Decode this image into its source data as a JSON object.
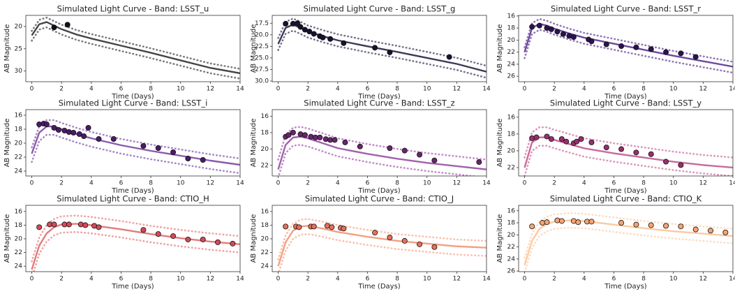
{
  "chart_data": [
    {
      "type": "line",
      "title": "Simulated Light Curve - Band: LSST_u",
      "xlabel": "Time (Days)",
      "ylabel": "AB Magnitude",
      "xlim": [
        -0.4,
        14
      ],
      "xticks": [
        0,
        2,
        4,
        6,
        8,
        10,
        12,
        14
      ],
      "ylim": [
        32.4,
        17.5
      ],
      "yticks": [
        20,
        25,
        30
      ],
      "x": [
        0,
        0.5,
        1,
        1.5,
        2,
        3,
        4,
        6,
        8,
        10,
        12,
        14
      ],
      "series": [
        {
          "color": "#454545",
          "dash": false,
          "values": [
            22,
            19.5,
            19,
            19.8,
            20.6,
            21.8,
            22.7,
            24.3,
            25.9,
            27.6,
            29.3,
            30.5
          ]
        },
        {
          "color": "#7a7a7a",
          "dash": true,
          "values": [
            21,
            18.5,
            18,
            18.8,
            19.6,
            20.8,
            21.7,
            23.3,
            24.9,
            26.6,
            28.3,
            29.5
          ]
        },
        {
          "color": "#7a7a7a",
          "dash": true,
          "values": [
            23.2,
            20.7,
            20.2,
            21,
            21.8,
            23,
            23.9,
            25.5,
            27.1,
            28.8,
            30.5,
            31.7
          ]
        }
      ],
      "points": {
        "color": "#120d1e",
        "x": [
          1.5,
          2.4
        ],
        "values": [
          20.2,
          19.6
        ]
      }
    },
    {
      "type": "line",
      "title": "Simulated Light Curve - Band: LSST_g",
      "xlabel": "Time (Days)",
      "ylabel": "AB Magnitude",
      "xlim": [
        -0.4,
        14
      ],
      "xticks": [
        0,
        2,
        4,
        6,
        8,
        10,
        12,
        14
      ],
      "ylim": [
        30.15,
        15.8
      ],
      "yticks": [
        17.5,
        {
          "value": 20,
          "label": "20.0"
        },
        22.5,
        {
          "value": 25,
          "label": "25.0"
        },
        27.5,
        {
          "value": 30,
          "label": "30.0"
        }
      ],
      "x": [
        0,
        0.5,
        1,
        1.5,
        2,
        3,
        4,
        6,
        8,
        10,
        12,
        14
      ],
      "series": [
        {
          "color": "#3b3a57",
          "dash": false,
          "values": [
            22,
            18.5,
            17.8,
            18.5,
            19.3,
            20.3,
            21.2,
            22.5,
            23.7,
            25,
            26.3,
            28
          ]
        },
        {
          "color": "#75748c",
          "dash": true,
          "values": [
            20.7,
            17.2,
            16.5,
            17.2,
            18,
            19,
            19.9,
            21.2,
            22.4,
            23.7,
            25,
            26.7
          ]
        },
        {
          "color": "#75748c",
          "dash": true,
          "values": [
            23.3,
            19.8,
            19.1,
            19.8,
            20.6,
            21.6,
            22.5,
            23.8,
            25,
            26.3,
            27.6,
            29.3
          ]
        }
      ],
      "points": {
        "color": "#1b1030",
        "x": [
          0.5,
          1,
          1.3,
          1.5,
          1.8,
          2.1,
          2.4,
          2.8,
          3,
          3.5,
          4.4,
          6.5,
          7.5,
          11.5
        ],
        "values": [
          17.6,
          17.6,
          17.5,
          18.3,
          18.9,
          19.3,
          19.8,
          20.3,
          20.6,
          20.9,
          21.8,
          22.8,
          23.8,
          24.8
        ]
      }
    },
    {
      "type": "line",
      "title": "Simulated Light Curve - Band: LSST_r",
      "xlabel": "Time (Days)",
      "ylabel": "AB Magnitude",
      "xlim": [
        -0.4,
        14
      ],
      "xticks": [
        0,
        2,
        4,
        6,
        8,
        10,
        12,
        14
      ],
      "ylim": [
        26.9,
        15.9
      ],
      "yticks": [
        16,
        18,
        20,
        22,
        24,
        26
      ],
      "x": [
        0,
        0.5,
        1,
        1.5,
        2,
        3,
        4,
        6,
        8,
        10,
        12,
        14
      ],
      "series": [
        {
          "color": "#6c4a9c",
          "dash": false,
          "values": [
            22,
            18,
            17.3,
            17.6,
            18.1,
            18.9,
            19.6,
            20.6,
            21.6,
            22.6,
            23.5,
            24.4
          ]
        },
        {
          "color": "#8f76b4",
          "dash": true,
          "values": [
            21.2,
            17.2,
            16.5,
            16.8,
            17.3,
            18.1,
            18.8,
            19.8,
            20.8,
            21.8,
            22.7,
            23.6
          ]
        },
        {
          "color": "#8f76b4",
          "dash": true,
          "values": [
            23,
            19,
            18.3,
            18.6,
            19.1,
            19.9,
            20.6,
            21.6,
            22.6,
            23.6,
            24.5,
            25.4
          ]
        }
      ],
      "points": {
        "color": "#2c1250",
        "x": [
          0.5,
          1,
          1.5,
          1.8,
          2.2,
          2.6,
          3,
          3.3,
          4.3,
          4.5,
          5.5,
          6.5,
          7.5,
          8.5,
          9.5,
          10.5,
          11.5
        ],
        "values": [
          17.8,
          17.6,
          18,
          18.2,
          18.6,
          19,
          19.3,
          19.5,
          19.9,
          20.2,
          20.7,
          21,
          21.2,
          21.5,
          22,
          22.2,
          22.8
        ]
      }
    },
    {
      "type": "line",
      "title": "Simulated Light Curve - Band: LSST_i",
      "xlabel": "Time (Days)",
      "ylabel": "AB Magnitude",
      "xlim": [
        -0.4,
        14
      ],
      "xticks": [
        0,
        2,
        4,
        6,
        8,
        10,
        12,
        14
      ],
      "ylim": [
        24.7,
        15.2
      ],
      "yticks": [
        16,
        18,
        20,
        22,
        24
      ],
      "x": [
        0,
        0.5,
        1,
        1.5,
        2,
        3,
        4,
        6,
        8,
        10,
        12,
        14
      ],
      "series": [
        {
          "color": "#8a5aab",
          "dash": false,
          "values": [
            21.5,
            18.5,
            17.6,
            17.6,
            18,
            18.7,
            19.3,
            20.3,
            21.1,
            21.8,
            22.5,
            23.1
          ]
        },
        {
          "color": "#a888c4",
          "dash": true,
          "values": [
            20.6,
            17.6,
            16.7,
            16.7,
            17.1,
            17.8,
            18.4,
            19.4,
            20.2,
            20.9,
            21.6,
            22.2
          ]
        },
        {
          "color": "#a888c4",
          "dash": true,
          "values": [
            22.7,
            19.7,
            18.8,
            18.8,
            19.2,
            19.9,
            20.5,
            21.5,
            22.3,
            23,
            23.7,
            24.3
          ]
        }
      ],
      "points": {
        "color": "#4a1a6a",
        "x": [
          0.5,
          0.8,
          1,
          1.5,
          1.8,
          2.2,
          2.5,
          2.8,
          3.2,
          3.5,
          3.8,
          4.5,
          5.5,
          7.5,
          8.5,
          9.5,
          10.5,
          11.5
        ],
        "values": [
          17.3,
          17.2,
          17.3,
          17.8,
          18.1,
          18.2,
          18.4,
          18.5,
          18.7,
          19,
          17.8,
          19.4,
          19.4,
          20.4,
          20.7,
          21.3,
          22.2,
          22.4
        ]
      }
    },
    {
      "type": "line",
      "title": "Simulated Light Curve - Band: LSST_z",
      "xlabel": "Time (Days)",
      "ylabel": "AB Magnitude",
      "xlim": [
        -0.4,
        14
      ],
      "xticks": [
        0,
        2,
        4,
        6,
        8,
        10,
        12,
        14
      ],
      "ylim": [
        23.3,
        15.2
      ],
      "yticks": [
        16,
        18,
        20,
        22
      ],
      "x": [
        0,
        0.5,
        1,
        1.5,
        2,
        3,
        4,
        6,
        8,
        10,
        12,
        14
      ],
      "series": [
        {
          "color": "#a062ab",
          "dash": false,
          "values": [
            22.5,
            19.5,
            18.6,
            18.5,
            18.7,
            19.3,
            19.9,
            20.6,
            21.2,
            21.7,
            22.1,
            22.5
          ]
        },
        {
          "color": "#c08cc6",
          "dash": true,
          "values": [
            21.3,
            18.3,
            17.4,
            17.3,
            17.5,
            18.1,
            18.7,
            19.4,
            20,
            20.5,
            20.9,
            21.3
          ]
        },
        {
          "color": "#c08cc6",
          "dash": true,
          "values": [
            23.5,
            20.5,
            19.6,
            19.5,
            19.7,
            20.3,
            20.9,
            21.6,
            22.2,
            22.7,
            23.1,
            23.5
          ]
        }
      ],
      "points": {
        "color": "#6a2470",
        "x": [
          0.5,
          0.7,
          1,
          1.5,
          1.8,
          2.2,
          2.5,
          2.8,
          3.2,
          3.5,
          3.8,
          4.5,
          5.5,
          7.5,
          8.5,
          9.5,
          10.5,
          13.5
        ],
        "values": [
          18.5,
          18.3,
          18,
          18.2,
          18.3,
          18.5,
          18.6,
          18.6,
          18.8,
          18.9,
          18.9,
          19.2,
          19.7,
          19.9,
          20.2,
          20.7,
          21.4,
          21.6
        ]
      }
    },
    {
      "type": "line",
      "title": "Simulated Light Curve - Band: LSST_y",
      "xlabel": "Time (Days)",
      "ylabel": "AB Magnitude",
      "xlim": [
        -0.4,
        14
      ],
      "xticks": [
        0,
        2,
        4,
        6,
        8,
        10,
        12,
        14
      ],
      "ylim": [
        23.0,
        15.1
      ],
      "yticks": [
        16,
        18,
        20,
        22
      ],
      "x": [
        0,
        0.5,
        1,
        1.5,
        2,
        3,
        4,
        6,
        8,
        10,
        12,
        14
      ],
      "series": [
        {
          "color": "#c86b9b",
          "dash": false,
          "values": [
            22,
            19,
            18.4,
            18.4,
            18.7,
            19.2,
            19.7,
            20.3,
            20.8,
            21.3,
            21.7,
            22
          ]
        },
        {
          "color": "#dc96bb",
          "dash": true,
          "values": [
            20.8,
            17.8,
            17.2,
            17.2,
            17.5,
            18,
            18.5,
            19.1,
            19.6,
            20.1,
            20.5,
            20.8
          ]
        },
        {
          "color": "#dc96bb",
          "dash": true,
          "values": [
            23,
            20,
            19.4,
            19.4,
            19.7,
            20.2,
            20.7,
            21.3,
            21.8,
            22.3,
            22.7,
            23
          ]
        }
      ],
      "points": {
        "color": "#9a2e6e",
        "x": [
          0.5,
          0.8,
          1.5,
          1.8,
          2.5,
          2.8,
          3.3,
          3.5,
          3.8,
          4.5,
          5.5,
          6.5,
          7.5,
          8.5,
          9.5,
          10.5
        ],
        "values": [
          18.5,
          18.4,
          18.3,
          18.6,
          18.6,
          18.9,
          19.1,
          18.9,
          18.6,
          19,
          19.6,
          19.8,
          20.2,
          20.4,
          21.3,
          21.7
        ]
      }
    },
    {
      "type": "line",
      "title": "Simulated Light Curve - Band: CTIO_H",
      "xlabel": "Time (Days)",
      "ylabel": "AB Magnitude",
      "xlim": [
        -0.4,
        14
      ],
      "xticks": [
        0,
        2,
        4,
        6,
        8,
        10,
        12,
        14
      ],
      "ylim": [
        24.8,
        15.1
      ],
      "yticks": [
        16,
        18,
        20,
        22,
        24
      ],
      "x": [
        0,
        0.5,
        1,
        1.5,
        2,
        3,
        4,
        6,
        8,
        10,
        12,
        14
      ],
      "series": [
        {
          "color": "#e47b7b",
          "dash": false,
          "values": [
            24.5,
            21,
            19.2,
            18.3,
            17.9,
            17.8,
            18,
            18.6,
            19.3,
            19.9,
            20.4,
            20.8
          ]
        },
        {
          "color": "#f0a3a3",
          "dash": true,
          "values": [
            23.3,
            19.8,
            18,
            17.1,
            16.7,
            16.6,
            16.8,
            17.4,
            18.1,
            18.7,
            19.2,
            19.6
          ]
        },
        {
          "color": "#f0a3a3",
          "dash": true,
          "values": [
            25.7,
            22.2,
            20.4,
            19.5,
            19.1,
            19,
            19.2,
            19.8,
            20.5,
            21.1,
            21.6,
            22
          ]
        }
      ],
      "points": {
        "color": "#d54a5a",
        "x": [
          0.5,
          1.2,
          1.5,
          2.2,
          2.5,
          3.3,
          3.6,
          4.2,
          4.5,
          7.5,
          8.5,
          9.5,
          10.5,
          11.5,
          12.5,
          13.5
        ],
        "values": [
          18.3,
          17.9,
          17.9,
          17.9,
          17.9,
          17.9,
          18,
          18.1,
          18.3,
          18.7,
          19.3,
          19.6,
          20.1,
          20.1,
          20.5,
          20.7
        ]
      }
    },
    {
      "type": "line",
      "title": "Simulated Light Curve - Band: CTIO_J",
      "xlabel": "Time (Days)",
      "ylabel": "AB Magnitude",
      "xlim": [
        -0.4,
        14
      ],
      "xticks": [
        0,
        2,
        4,
        6,
        8,
        10,
        12,
        14
      ],
      "ylim": [
        24.8,
        15.1
      ],
      "yticks": [
        16,
        18,
        20,
        22,
        24
      ],
      "x": [
        0,
        0.5,
        1,
        1.5,
        2,
        3,
        4,
        6,
        8,
        10,
        12,
        14
      ],
      "series": [
        {
          "color": "#f2a083",
          "dash": false,
          "values": [
            24,
            20.5,
            18.8,
            18.2,
            18.1,
            18.5,
            19,
            19.7,
            20.3,
            20.7,
            21.1,
            21.3
          ]
        },
        {
          "color": "#f8c0aa",
          "dash": true,
          "values": [
            23,
            19.5,
            17.8,
            17.2,
            17.1,
            17.5,
            18,
            18.7,
            19.3,
            19.7,
            20.1,
            20.3
          ]
        },
        {
          "color": "#f8c0aa",
          "dash": true,
          "values": [
            25.2,
            21.7,
            20,
            19.4,
            19.3,
            19.7,
            20.2,
            20.9,
            21.5,
            21.9,
            22.3,
            22.5
          ]
        }
      ],
      "points": {
        "color": "#e9705a",
        "x": [
          0.5,
          1.2,
          1.4,
          2.2,
          2.4,
          3.3,
          3.6,
          4.2,
          4.4,
          6.5,
          7.5,
          8.5,
          9.5,
          10.5
        ],
        "values": [
          18.2,
          18.2,
          18.3,
          18.2,
          18.2,
          18.1,
          18.3,
          18.4,
          18.5,
          19.1,
          19.8,
          20.3,
          20.8,
          21.2
        ]
      }
    },
    {
      "type": "line",
      "title": "Simulated Light Curve - Band: CTIO_K",
      "xlabel": "Time (Days)",
      "ylabel": "AB Magnitude",
      "xlim": [
        -0.4,
        14
      ],
      "xticks": [
        0,
        2,
        4,
        6,
        8,
        10,
        12,
        14
      ],
      "ylim": [
        26.1,
        15.1
      ],
      "yticks": [
        16,
        18,
        20,
        22,
        24,
        26
      ],
      "x": [
        0,
        0.5,
        1,
        1.5,
        2,
        3,
        4,
        6,
        8,
        10,
        12,
        14
      ],
      "series": [
        {
          "color": "#fcc9a2",
          "dash": false,
          "values": [
            25,
            21,
            19,
            18.2,
            17.8,
            17.6,
            17.7,
            18.3,
            18.9,
            19.4,
            19.8,
            20.2
          ]
        },
        {
          "color": "#fddcc2",
          "dash": true,
          "values": [
            23.8,
            19.8,
            17.8,
            17,
            16.6,
            16.4,
            16.5,
            17.1,
            17.7,
            18.2,
            18.6,
            19
          ]
        },
        {
          "color": "#fddcc2",
          "dash": true,
          "values": [
            26.2,
            22.2,
            20.2,
            19.4,
            19,
            18.8,
            18.9,
            19.5,
            20.1,
            20.6,
            21,
            21.4
          ]
        }
      ],
      "points": {
        "color": "#f6a473",
        "x": [
          0.5,
          1.2,
          1.5,
          2.2,
          2.5,
          3.3,
          3.6,
          4.2,
          4.5,
          6.5,
          7.5,
          8.5,
          9.5,
          10.5,
          11.5,
          12.5,
          13.5
        ],
        "values": [
          18.6,
          18,
          17.9,
          17.6,
          17.7,
          17.7,
          17.9,
          17.8,
          17.8,
          18,
          18.3,
          18.4,
          18.5,
          18.6,
          19.1,
          19.3,
          19.6
        ]
      }
    }
  ]
}
